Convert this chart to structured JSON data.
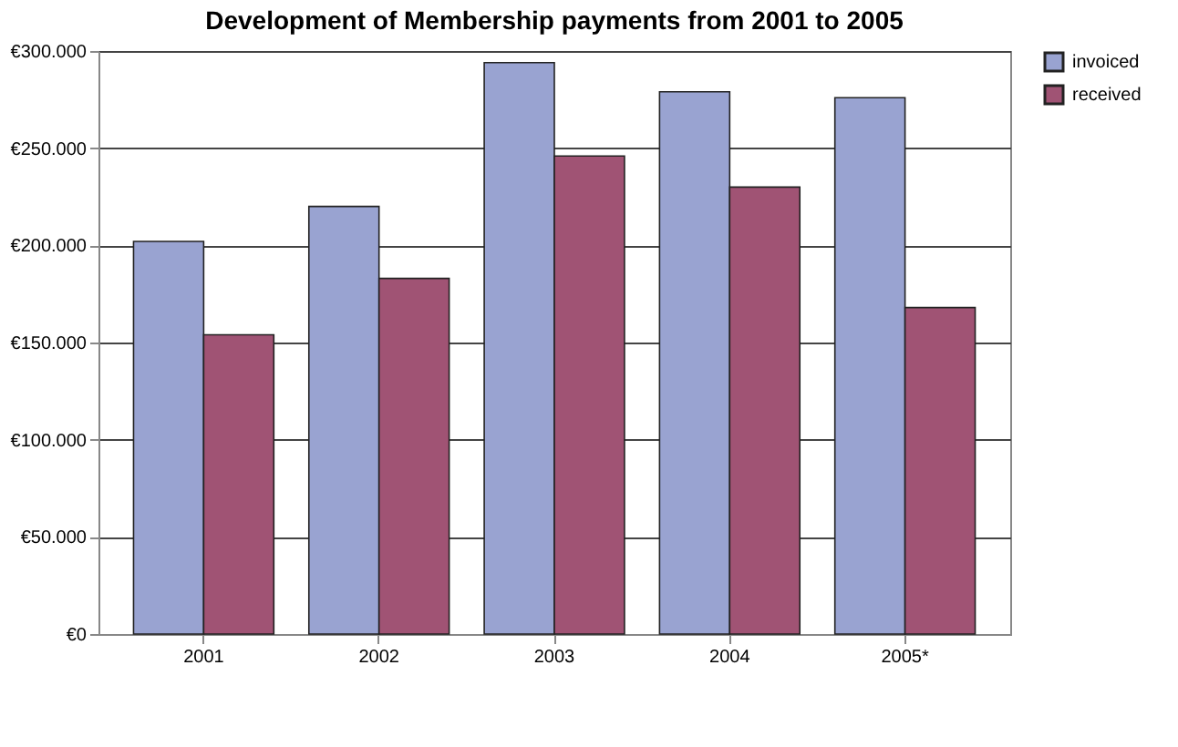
{
  "chart_data": {
    "type": "bar",
    "title": "Development of Membership payments from 2001 to 2005",
    "categories": [
      "2001",
      "2002",
      "2003",
      "2004",
      "2005*"
    ],
    "series": [
      {
        "name": "invoiced",
        "color": "#99a3d1",
        "values": [
          202000,
          220000,
          294000,
          279000,
          276000
        ]
      },
      {
        "name": "received",
        "color": "#a05374",
        "values": [
          154000,
          183000,
          246000,
          230000,
          168000
        ]
      }
    ],
    "ylim": [
      0,
      300000
    ],
    "yticks": [
      {
        "value": 0,
        "label": "€0"
      },
      {
        "value": 50000,
        "label": "€50.000"
      },
      {
        "value": 100000,
        "label": "€100.000"
      },
      {
        "value": 150000,
        "label": "€150.000"
      },
      {
        "value": 200000,
        "label": "€200.000"
      },
      {
        "value": 250000,
        "label": "€250.000"
      },
      {
        "value": 300000,
        "label": "€300.000"
      }
    ],
    "grid": "y",
    "legend": "right"
  }
}
